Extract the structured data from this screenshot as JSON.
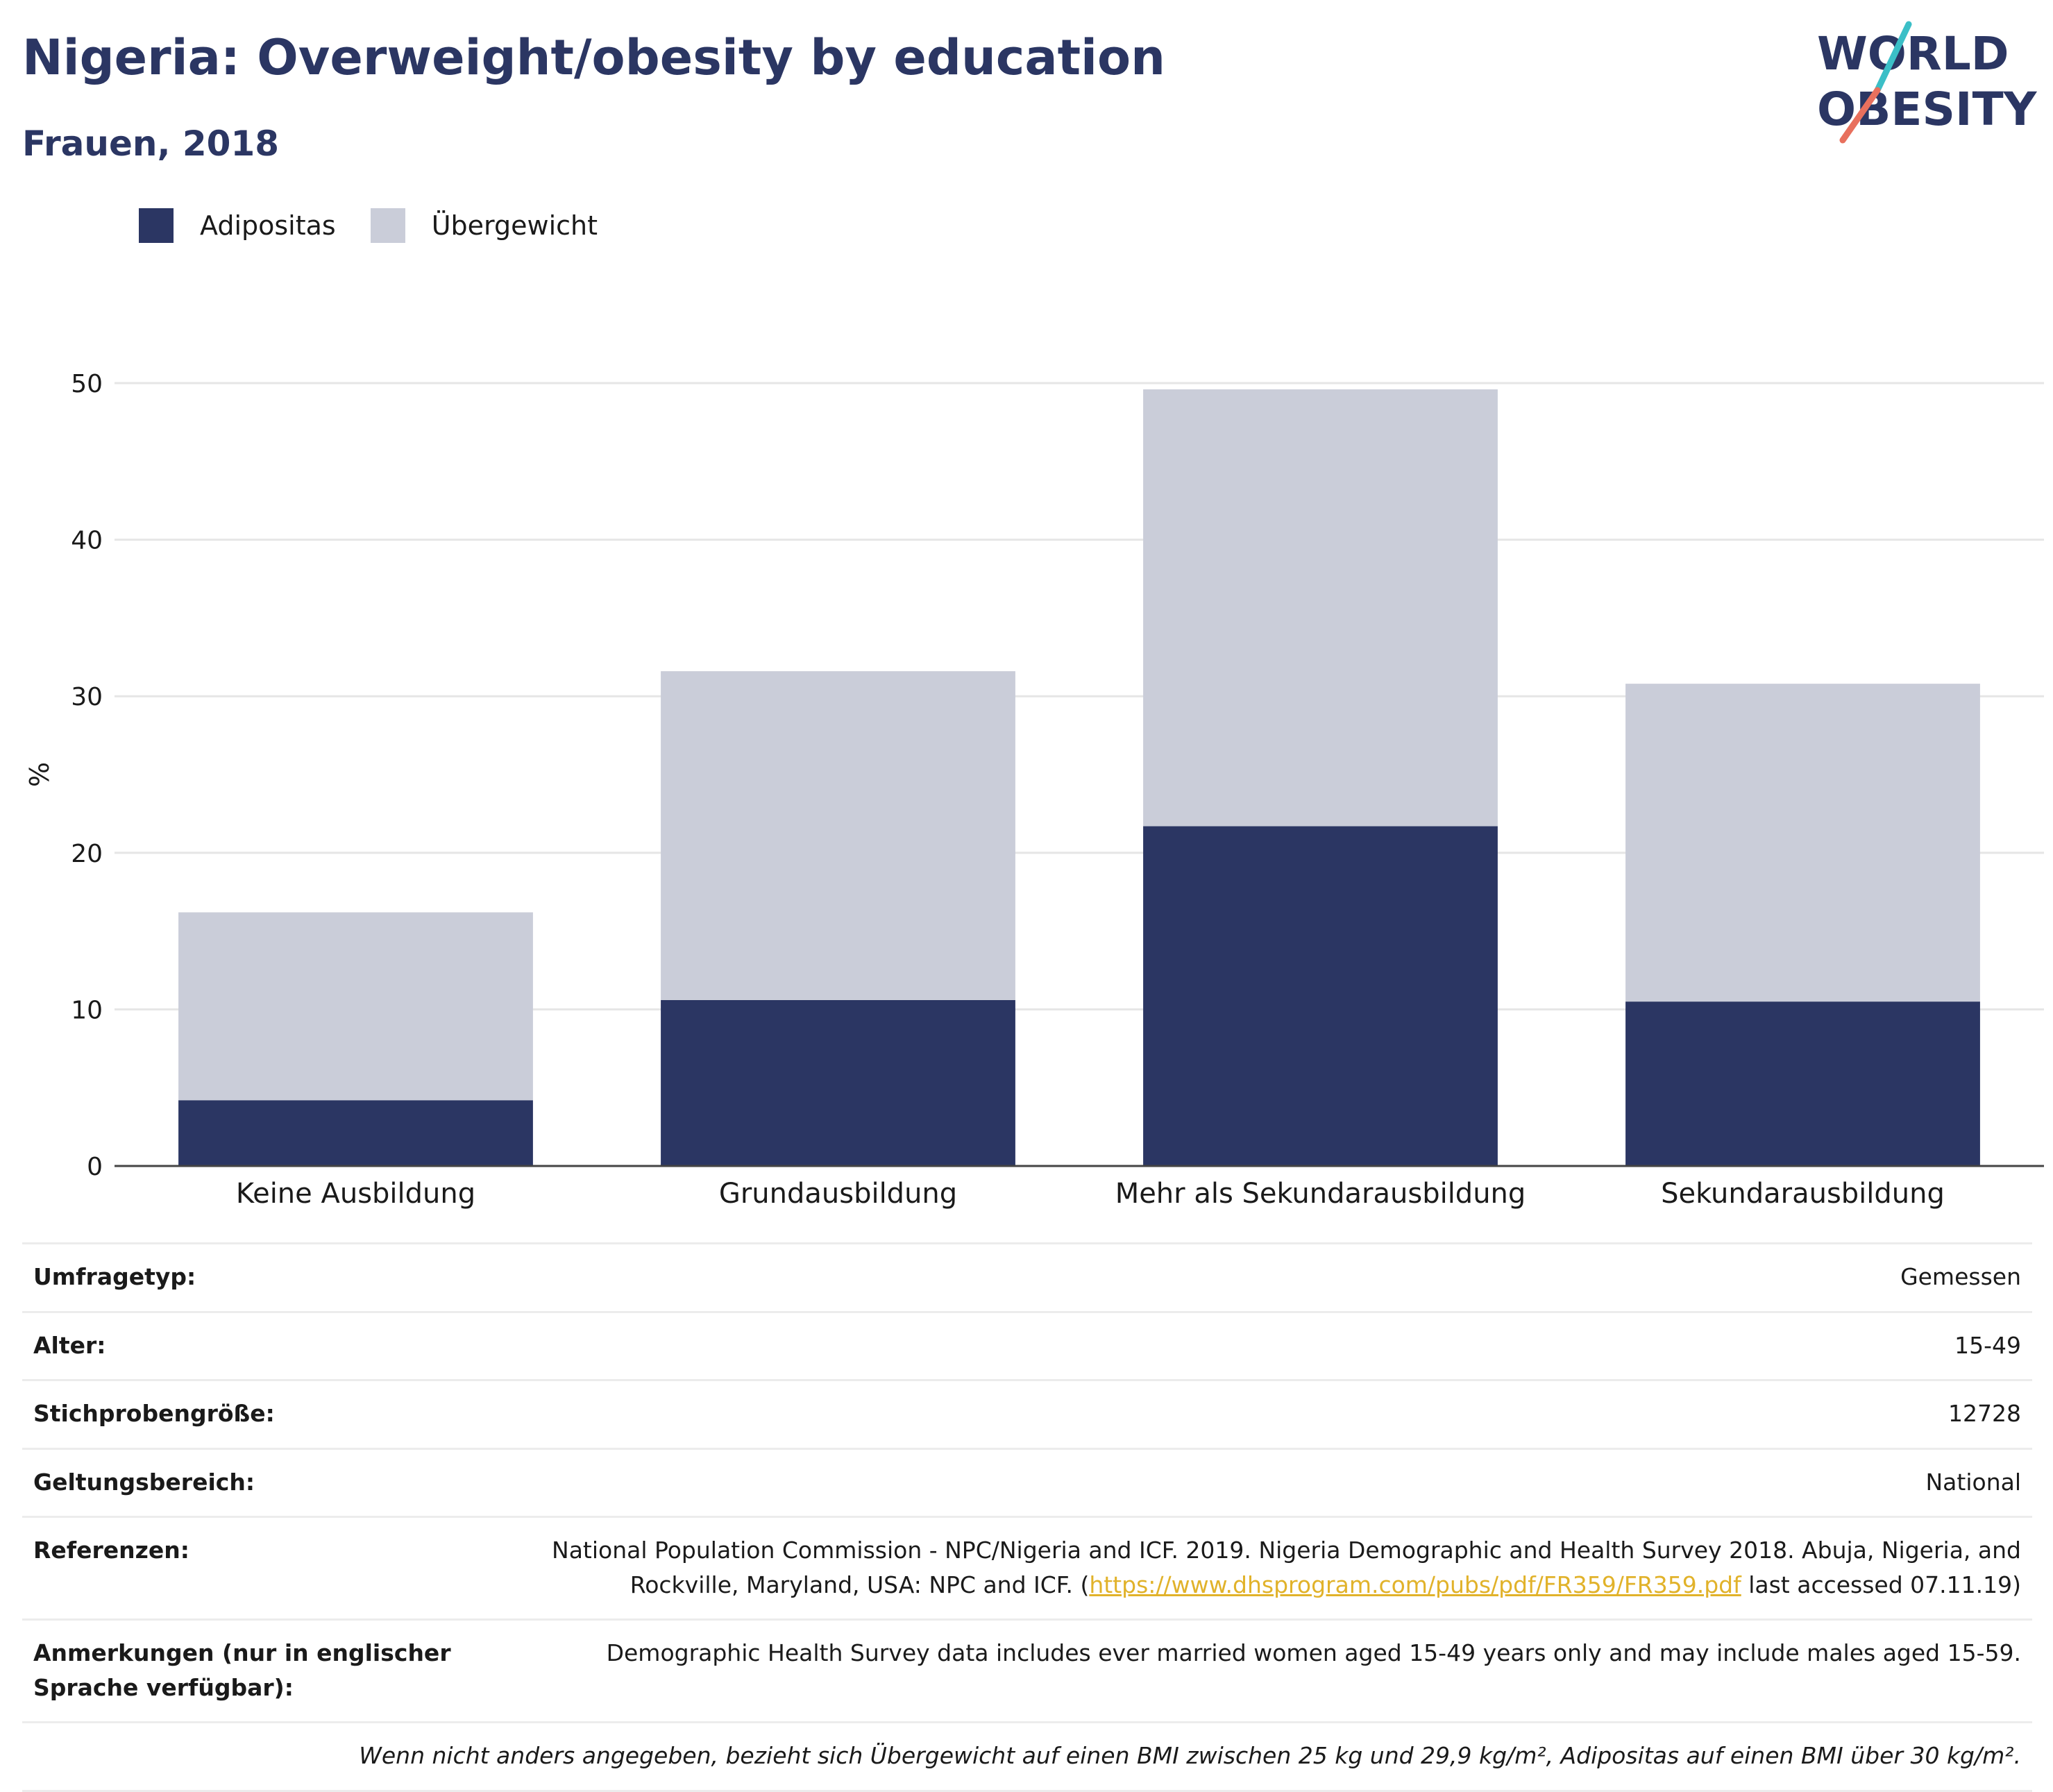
{
  "header": {
    "title": "Nigeria: Overweight/obesity by education",
    "subtitle": "Frauen, 2018"
  },
  "logo": {
    "line1": "WORLD",
    "line2": "OBESITY"
  },
  "colors": {
    "adipositas": "#2b3663",
    "uebergewicht": "#cacdd9",
    "title": "#2b3663",
    "link": "#e1b22a",
    "logo_teal": "#3bbfc7",
    "logo_coral": "#e8705d"
  },
  "legend": [
    {
      "label": "Adipositas",
      "color": "#2b3663"
    },
    {
      "label": "Übergewicht",
      "color": "#cacdd9"
    }
  ],
  "chart_data": {
    "type": "bar",
    "stacked": true,
    "categories": [
      "Keine Ausbildung",
      "Grundausbildung",
      "Mehr als Sekundarausbildung",
      "Sekundarausbildung"
    ],
    "series": [
      {
        "name": "Adipositas",
        "values": [
          4.2,
          10.6,
          21.7,
          10.5
        ]
      },
      {
        "name": "Übergewicht",
        "values": [
          12.0,
          21.0,
          27.9,
          20.3
        ]
      }
    ],
    "ylabel": "%",
    "ylim": [
      0,
      50
    ],
    "yticks": [
      0,
      10,
      20,
      30,
      40,
      50
    ],
    "grid": true,
    "legend_position": "top-left"
  },
  "info": {
    "rows": [
      {
        "label": "Umfragetyp:",
        "value": "Gemessen"
      },
      {
        "label": "Alter:",
        "value": "15-49"
      },
      {
        "label": "Stichprobengröße:",
        "value": "12728"
      },
      {
        "label": "Geltungsbereich:",
        "value": "National"
      }
    ],
    "references": {
      "label": "Referenzen:",
      "text_before": "National Population Commission - NPC/Nigeria and ICF. 2019. Nigeria Demographic and Health Survey 2018. Abuja, Nigeria, and Rockville, Maryland, USA: NPC and ICF. (",
      "link": "https://www.dhsprogram.com/pubs/pdf/FR359/FR359.pdf",
      "text_after": " last accessed 07.11.19)"
    },
    "notes": {
      "label": "Anmerkungen (nur in englischer Sprache verfügbar):",
      "value": "Demographic Health Survey data includes ever married women aged 15-49 years only and may include males aged 15-59."
    },
    "footnote": "Wenn nicht anders angegeben, bezieht sich Übergewicht auf einen BMI zwischen 25 kg und 29,9 kg/m², Adipositas auf einen BMI über 30 kg/m²."
  }
}
